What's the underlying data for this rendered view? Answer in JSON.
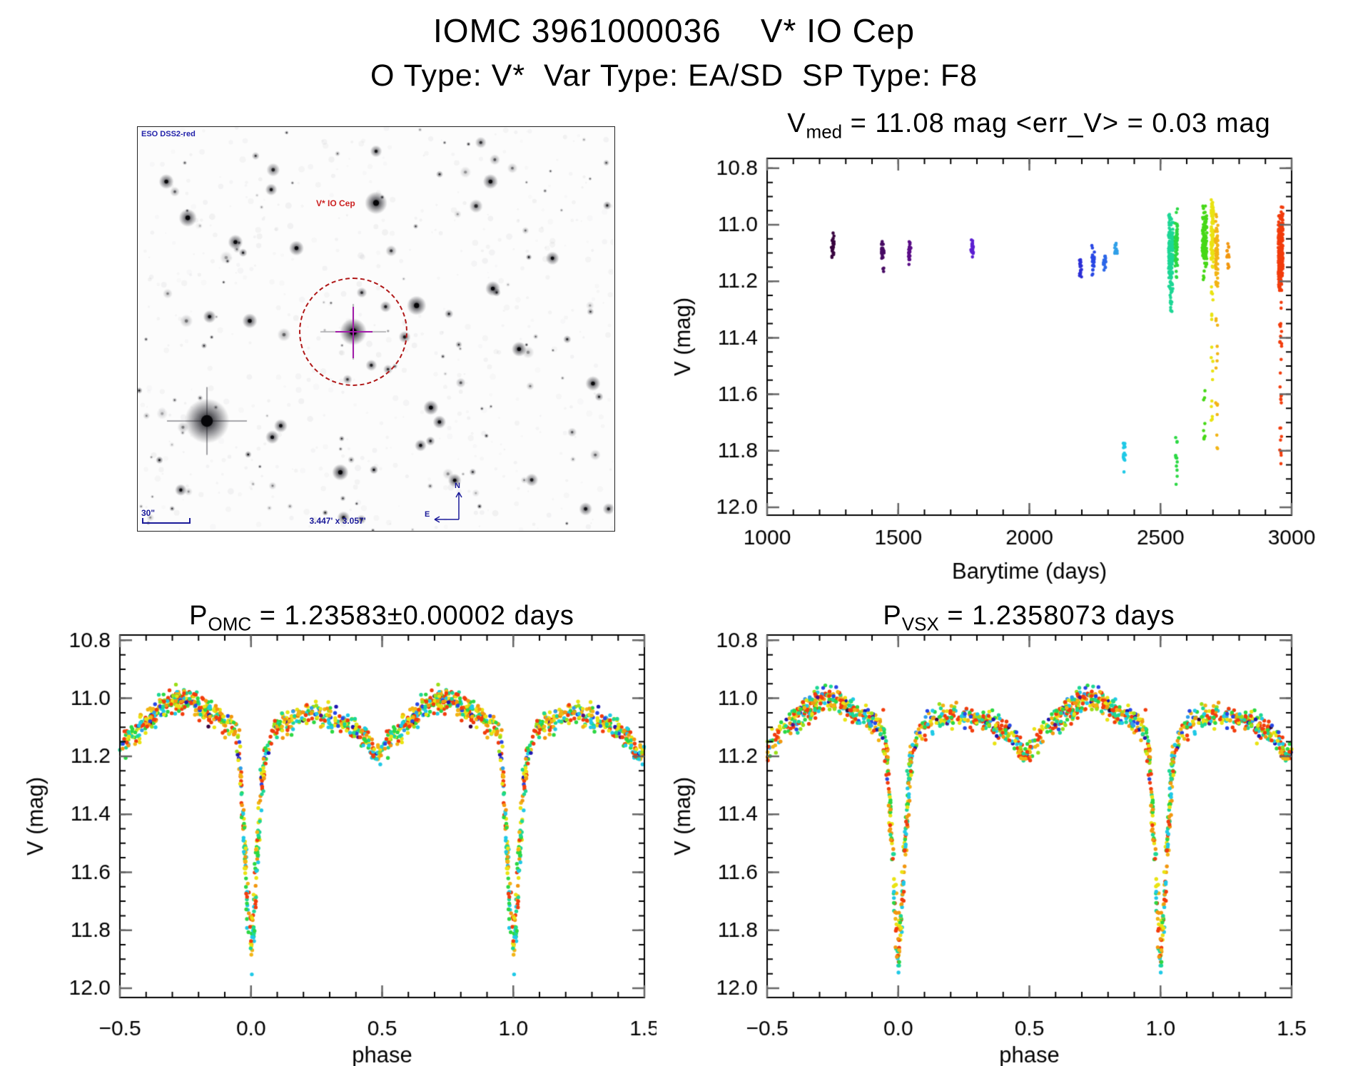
{
  "page": {
    "title": "IOMC 3961000036    V* IO Cep",
    "subtitle": "O Type: V*  Var Type: EA/SD  SP Type: F8"
  },
  "finder": {
    "survey_label": "ESO DSS2-red",
    "target_label": "V* IO Cep",
    "scale_label": "30\"",
    "fov_label": "3.447' x 3.057'",
    "compass_n": "N",
    "compass_e": "E",
    "annotation_color": "#1a1a99",
    "circle_color": "#b01818",
    "crosshair_color": "#a21caa"
  },
  "chart_data": [
    {
      "id": "barytime",
      "type": "scatter",
      "title_main": "V",
      "title_sub": "med",
      "title_rest": " = 11.08 mag <err_V> = 0.03 mag",
      "xlabel": "Barytime (days)",
      "ylabel": "V (mag)",
      "xlim": [
        1000,
        3000
      ],
      "ylim": [
        10.765,
        12.028
      ],
      "y_increases_downward": true,
      "xticks": [
        1000,
        1500,
        2000,
        2500,
        3000
      ],
      "xtick_labels": [
        "1000",
        "1500",
        "2000",
        "2500",
        "3000"
      ],
      "yticks": [
        10.8,
        11.0,
        11.2,
        11.4,
        11.6,
        11.8,
        12.0
      ],
      "ytick_labels": [
        "10.8",
        "11.0",
        "11.2",
        "11.4",
        "11.6",
        "11.8",
        "12.0"
      ],
      "xminor": 100,
      "yminor": 0.05,
      "grid": false,
      "seed": 5,
      "clusters": [
        {
          "t": 1250,
          "color": "#38043f",
          "n": 26,
          "band": [
            11.02,
            11.14
          ]
        },
        {
          "t": 1441,
          "color": "#470a63",
          "n": 24,
          "band": [
            11.05,
            11.13
          ],
          "tail": {
            "n": 3,
            "range": [
              11.15,
              11.17
            ]
          }
        },
        {
          "t": 1544,
          "color": "#5a0d87",
          "n": 30,
          "band": [
            11.04,
            11.15
          ]
        },
        {
          "t": 1782,
          "color": "#5c1fd2",
          "n": 26,
          "band": [
            11.05,
            11.12
          ]
        },
        {
          "t": 2196,
          "color": "#2c2ed6",
          "n": 16,
          "band": [
            11.1,
            11.19
          ]
        },
        {
          "t": 2243,
          "color": "#2847e4",
          "n": 22,
          "band": [
            11.07,
            11.19
          ]
        },
        {
          "t": 2287,
          "color": "#2b66e8",
          "n": 18,
          "band": [
            11.08,
            11.19
          ]
        },
        {
          "t": 2330,
          "color": "#2f9fe8",
          "n": 13,
          "band": [
            11.06,
            11.11
          ]
        },
        {
          "t": 2362,
          "color": "#1fc9e6",
          "n": 15,
          "band": [
            11.73,
            11.9
          ]
        },
        {
          "t": 2540,
          "color": "#1dd795",
          "n": 150,
          "band": [
            10.95,
            11.24
          ],
          "tail": {
            "n": 16,
            "range": [
              11.2,
              11.31
            ]
          }
        },
        {
          "t": 2560,
          "color": "#2bd843",
          "n": 55,
          "band": [
            10.93,
            11.2
          ],
          "tail": {
            "n": 13,
            "range": [
              11.7,
              11.92
            ]
          }
        },
        {
          "t": 2668,
          "color": "#46d816",
          "n": 110,
          "band": [
            10.92,
            11.2
          ],
          "tail": {
            "n": 9,
            "range": [
              11.55,
              11.85
            ]
          }
        },
        {
          "t": 2697,
          "color": "#e9e312",
          "n": 90,
          "band": [
            10.9,
            11.18
          ],
          "tail": {
            "n": 18,
            "range": [
              11.2,
              11.85
            ]
          }
        },
        {
          "t": 2714,
          "color": "#f2b414",
          "n": 60,
          "band": [
            10.95,
            11.22
          ],
          "tail": {
            "n": 15,
            "range": [
              11.3,
              11.87
            ]
          }
        },
        {
          "t": 2758,
          "color": "#f2970f",
          "n": 16,
          "band": [
            11.05,
            11.18
          ]
        },
        {
          "t": 2958,
          "color": "#f23c0c",
          "n": 230,
          "band": [
            10.92,
            11.26
          ],
          "tail": {
            "n": 28,
            "range": [
              11.26,
              11.87
            ]
          }
        }
      ]
    },
    {
      "id": "phase_omc",
      "type": "phasefold",
      "title_main": "P",
      "title_sub": "OMC",
      "title_rest": " = 1.23583±0.00002 days",
      "xlabel": "phase",
      "ylabel": "V (mag)",
      "xlim": [
        -0.5,
        1.5
      ],
      "ylim": [
        10.782,
        12.032
      ],
      "y_increases_downward": true,
      "xticks": [
        -0.5,
        0.0,
        0.5,
        1.0,
        1.5
      ],
      "xtick_labels": [
        "−0.5",
        "0.0",
        "0.5",
        "1.0",
        "1.5"
      ],
      "yticks": [
        10.8,
        11.0,
        11.2,
        11.4,
        11.6,
        11.8,
        12.0
      ],
      "ytick_labels": [
        "10.8",
        "11.0",
        "11.2",
        "11.4",
        "11.6",
        "11.8",
        "12.0"
      ],
      "xminor": 0.1,
      "yminor": 0.05,
      "grid": false,
      "seed": 11,
      "n_points": 780,
      "scatter_sigma": 0.021,
      "primary_minimum_mag": 11.9,
      "secondary_minimum_mag": 11.2,
      "out_of_eclipse_mag": 11.05,
      "base_curve": [
        [
          0.0,
          11.88
        ],
        [
          0.012,
          11.73
        ],
        [
          0.025,
          11.52
        ],
        [
          0.04,
          11.3
        ],
        [
          0.055,
          11.18
        ],
        [
          0.08,
          11.12
        ],
        [
          0.12,
          11.085
        ],
        [
          0.18,
          11.065
        ],
        [
          0.25,
          11.06
        ],
        [
          0.32,
          11.08
        ],
        [
          0.38,
          11.1
        ],
        [
          0.44,
          11.135
        ],
        [
          0.47,
          11.195
        ],
        [
          0.5,
          11.185
        ],
        [
          0.53,
          11.135
        ],
        [
          0.58,
          11.095
        ],
        [
          0.64,
          11.045
        ],
        [
          0.7,
          11.005
        ],
        [
          0.76,
          11.005
        ],
        [
          0.82,
          11.04
        ],
        [
          0.88,
          11.07
        ],
        [
          0.92,
          11.09
        ],
        [
          0.945,
          11.115
        ],
        [
          0.958,
          11.22
        ],
        [
          0.972,
          11.45
        ],
        [
          0.985,
          11.68
        ],
        [
          1.0,
          11.88
        ]
      ],
      "palette": [
        {
          "c": "#f23c0c",
          "w": 20
        },
        {
          "c": "#f2970f",
          "w": 7
        },
        {
          "c": "#f2b414",
          "w": 9
        },
        {
          "c": "#e9e312",
          "w": 11
        },
        {
          "c": "#9ade18",
          "w": 5
        },
        {
          "c": "#2bd843",
          "w": 9
        },
        {
          "c": "#1dd795",
          "w": 8
        },
        {
          "c": "#1fc9e6",
          "w": 9
        },
        {
          "c": "#2f9fe8",
          "w": 2
        },
        {
          "c": "#2847e4",
          "w": 3
        },
        {
          "c": "#1d17b0",
          "w": 2
        },
        {
          "c": "#5a0d87",
          "w": 1
        },
        {
          "c": "#38043f",
          "w": 1
        }
      ],
      "eclipse_palette": [
        "#f23c0c",
        "#f2970f",
        "#f2b414",
        "#e9e312",
        "#2bd843",
        "#1dd795",
        "#1fc9e6"
      ]
    },
    {
      "id": "phase_vsx",
      "type": "phasefold",
      "title_main": "P",
      "title_sub": "VSX",
      "title_rest": " = 1.2358073 days",
      "xlabel": "phase",
      "ylabel": "V (mag)",
      "xlim": [
        -0.5,
        1.5
      ],
      "ylim": [
        10.782,
        12.032
      ],
      "y_increases_downward": true,
      "xticks": [
        -0.5,
        0.0,
        0.5,
        1.0,
        1.5
      ],
      "xtick_labels": [
        "−0.5",
        "0.0",
        "0.5",
        "1.0",
        "1.5"
      ],
      "yticks": [
        10.8,
        11.0,
        11.2,
        11.4,
        11.6,
        11.8,
        12.0
      ],
      "ytick_labels": [
        "10.8",
        "11.0",
        "11.2",
        "11.4",
        "11.6",
        "11.8",
        "12.0"
      ],
      "xminor": 0.1,
      "yminor": 0.05,
      "grid": false,
      "seed": 23,
      "n_points": 780,
      "scatter_sigma": 0.021,
      "primary_minimum_mag": 11.9,
      "secondary_minimum_mag": 11.2,
      "out_of_eclipse_mag": 11.05,
      "base_curve": [
        [
          0.0,
          11.88
        ],
        [
          0.012,
          11.73
        ],
        [
          0.025,
          11.52
        ],
        [
          0.04,
          11.3
        ],
        [
          0.055,
          11.18
        ],
        [
          0.08,
          11.12
        ],
        [
          0.12,
          11.085
        ],
        [
          0.18,
          11.065
        ],
        [
          0.25,
          11.06
        ],
        [
          0.32,
          11.08
        ],
        [
          0.38,
          11.1
        ],
        [
          0.44,
          11.135
        ],
        [
          0.47,
          11.195
        ],
        [
          0.5,
          11.185
        ],
        [
          0.53,
          11.135
        ],
        [
          0.58,
          11.095
        ],
        [
          0.64,
          11.045
        ],
        [
          0.7,
          11.005
        ],
        [
          0.76,
          11.005
        ],
        [
          0.82,
          11.04
        ],
        [
          0.88,
          11.07
        ],
        [
          0.92,
          11.09
        ],
        [
          0.945,
          11.115
        ],
        [
          0.958,
          11.22
        ],
        [
          0.972,
          11.45
        ],
        [
          0.985,
          11.68
        ],
        [
          1.0,
          11.88
        ]
      ],
      "palette": [
        {
          "c": "#f23c0c",
          "w": 20
        },
        {
          "c": "#f2970f",
          "w": 7
        },
        {
          "c": "#f2b414",
          "w": 9
        },
        {
          "c": "#e9e312",
          "w": 11
        },
        {
          "c": "#9ade18",
          "w": 5
        },
        {
          "c": "#2bd843",
          "w": 9
        },
        {
          "c": "#1dd795",
          "w": 8
        },
        {
          "c": "#1fc9e6",
          "w": 9
        },
        {
          "c": "#2f9fe8",
          "w": 2
        },
        {
          "c": "#2847e4",
          "w": 3
        },
        {
          "c": "#1d17b0",
          "w": 2
        },
        {
          "c": "#5a0d87",
          "w": 1
        },
        {
          "c": "#38043f",
          "w": 1
        }
      ],
      "eclipse_palette": [
        "#f23c0c",
        "#f2970f",
        "#f2b414",
        "#e9e312",
        "#2bd843",
        "#1dd795",
        "#1fc9e6"
      ]
    }
  ]
}
